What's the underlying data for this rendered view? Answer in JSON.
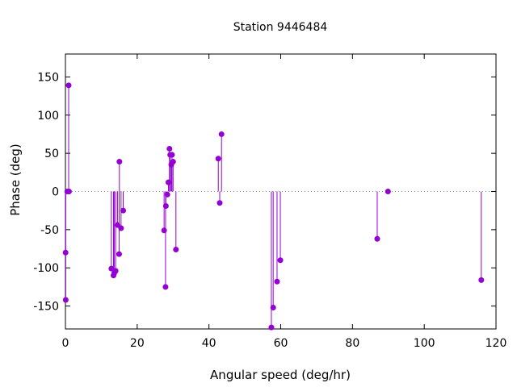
{
  "chart_data": {
    "type": "scatter",
    "style": "impulses-with-points",
    "title": "Station 9446484",
    "xlabel": "Angular speed (deg/hr)",
    "ylabel": "Phase (deg)",
    "xlim": [
      0,
      120
    ],
    "ylim": [
      -180,
      180
    ],
    "x_ticks": [
      0,
      20,
      40,
      60,
      80,
      100,
      120
    ],
    "y_ticks": [
      -150,
      -100,
      -50,
      0,
      50,
      100,
      150
    ],
    "grid": false,
    "zero_line": true,
    "color": "#9400d3",
    "points": [
      {
        "x": 0.04,
        "y": -80
      },
      {
        "x": 0.08,
        "y": -142
      },
      {
        "x": 0.5,
        "y": 0
      },
      {
        "x": 0.9,
        "y": 139
      },
      {
        "x": 1.0,
        "y": 0
      },
      {
        "x": 12.8,
        "y": -101
      },
      {
        "x": 13.4,
        "y": -110
      },
      {
        "x": 13.6,
        "y": -107
      },
      {
        "x": 14.0,
        "y": -104
      },
      {
        "x": 14.5,
        "y": -44
      },
      {
        "x": 14.96,
        "y": -82
      },
      {
        "x": 15.04,
        "y": 39
      },
      {
        "x": 15.5,
        "y": -48
      },
      {
        "x": 16.1,
        "y": -25
      },
      {
        "x": 27.5,
        "y": -51
      },
      {
        "x": 27.9,
        "y": -125
      },
      {
        "x": 28.0,
        "y": -19
      },
      {
        "x": 28.4,
        "y": -4
      },
      {
        "x": 28.7,
        "y": 12
      },
      {
        "x": 29.0,
        "y": 56
      },
      {
        "x": 29.2,
        "y": 48
      },
      {
        "x": 29.5,
        "y": 35
      },
      {
        "x": 29.7,
        "y": 48
      },
      {
        "x": 30.0,
        "y": 39
      },
      {
        "x": 30.8,
        "y": -76
      },
      {
        "x": 42.6,
        "y": 43
      },
      {
        "x": 43.0,
        "y": -15
      },
      {
        "x": 43.5,
        "y": 75
      },
      {
        "x": 57.4,
        "y": -178
      },
      {
        "x": 57.9,
        "y": -152
      },
      {
        "x": 58.98,
        "y": -118
      },
      {
        "x": 59.9,
        "y": -90
      },
      {
        "x": 86.9,
        "y": -62
      },
      {
        "x": 89.9,
        "y": 0
      },
      {
        "x": 115.9,
        "y": -116
      }
    ]
  }
}
